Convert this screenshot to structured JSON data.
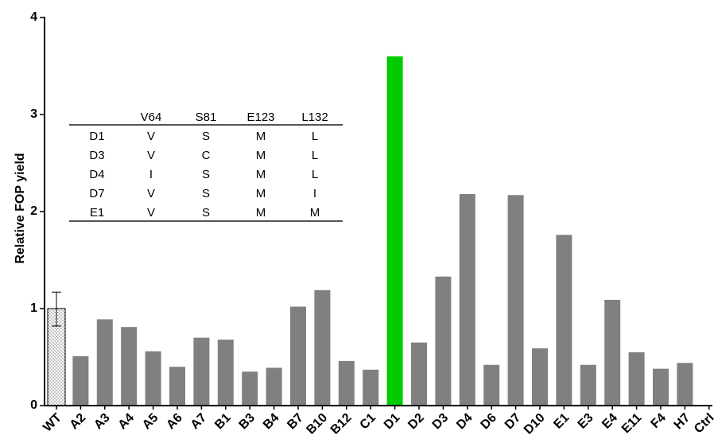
{
  "chart_data": {
    "type": "bar",
    "title": "",
    "xlabel": "",
    "ylabel": "Relative FOP yield",
    "ylim": [
      0,
      4
    ],
    "yticks": [
      "0",
      "1",
      "2",
      "3",
      "4"
    ],
    "categories": [
      "WT",
      "A2",
      "A3",
      "A4",
      "A5",
      "A6",
      "A7",
      "B1",
      "B3",
      "B4",
      "B7",
      "B10",
      "B12",
      "C1",
      "D1",
      "D2",
      "D3",
      "D4",
      "D6",
      "D7",
      "D10",
      "E1",
      "E3",
      "E4",
      "E11",
      "F4",
      "H7",
      "Ctrl"
    ],
    "values": [
      1.0,
      0.51,
      0.89,
      0.81,
      0.56,
      0.4,
      0.7,
      0.68,
      0.35,
      0.39,
      1.02,
      1.19,
      0.46,
      0.37,
      3.6,
      0.65,
      1.33,
      2.18,
      0.42,
      2.17,
      0.59,
      1.76,
      0.42,
      1.09,
      0.55,
      0.38,
      0.44,
      0.0
    ],
    "wt_error": [
      0.82,
      1.17
    ],
    "colors": {
      "default": "#808080",
      "highlight": "#00cc00",
      "wt_fill": "#ffffff",
      "axis": "#000000"
    },
    "highlight_category": "D1",
    "wt_style": "dotted-fill with error bar",
    "grid": false,
    "legend": "none"
  },
  "inset_table": {
    "headers": [
      "",
      "V64",
      "S81",
      "E123",
      "L132"
    ],
    "rows": [
      [
        "D1",
        "V",
        "S",
        "M",
        "L"
      ],
      [
        "D3",
        "V",
        "C",
        "M",
        "L"
      ],
      [
        "D4",
        "I",
        "S",
        "M",
        "L"
      ],
      [
        "D7",
        "V",
        "S",
        "M",
        "I"
      ],
      [
        "E1",
        "V",
        "S",
        "M",
        "M"
      ]
    ]
  }
}
